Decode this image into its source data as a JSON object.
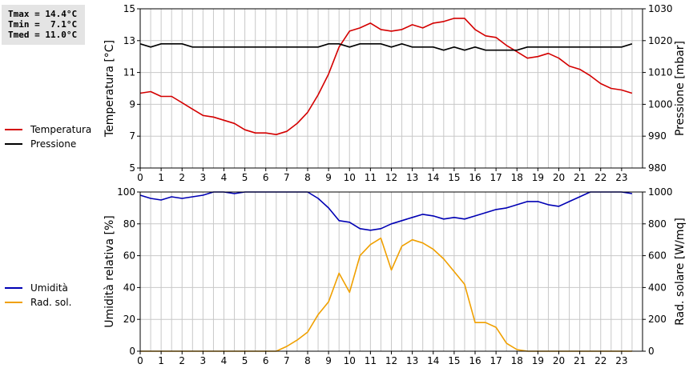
{
  "stats": {
    "tmax": "Tmax = 14.4°C",
    "tmin": "Tmin =  7.1°C",
    "tmed": "Tmed = 11.0°C"
  },
  "colors": {
    "temperature": "#d40000",
    "pressure": "#000000",
    "humidity": "#0000b4",
    "solar": "#f0a000",
    "grid": "#c8c8c8"
  },
  "chart_data": [
    {
      "type": "line",
      "x_ticks": [
        0,
        1,
        2,
        3,
        4,
        5,
        6,
        7,
        8,
        9,
        10,
        11,
        12,
        13,
        14,
        15,
        16,
        17,
        18,
        19,
        20,
        21,
        22,
        23
      ],
      "xlim": [
        0,
        24
      ],
      "ylabel_left": "Temperatura [°C]",
      "ylabel_right": "Pressione [mbar]",
      "ylim_left": [
        5,
        15
      ],
      "yticks_left": [
        5,
        7,
        9,
        11,
        13,
        15
      ],
      "ylim_right": [
        980,
        1030
      ],
      "yticks_right": [
        980,
        990,
        1000,
        1010,
        1020,
        1030
      ],
      "grid": true,
      "legend_position": "left",
      "series": [
        {
          "name": "Temperatura",
          "axis": "left",
          "color": "#d40000",
          "x": [
            0,
            0.5,
            1,
            1.5,
            2,
            2.5,
            3,
            3.5,
            4,
            4.5,
            5,
            5.5,
            6,
            6.5,
            7,
            7.5,
            8,
            8.5,
            9,
            9.5,
            10,
            10.5,
            11,
            11.5,
            12,
            12.5,
            13,
            13.5,
            14,
            14.5,
            15,
            15.5,
            16,
            16.5,
            17,
            17.5,
            18,
            18.5,
            19,
            19.5,
            20,
            20.5,
            21,
            21.5,
            22,
            22.5,
            23,
            23.5
          ],
          "values": [
            9.7,
            9.8,
            9.5,
            9.5,
            9.1,
            8.7,
            8.3,
            8.2,
            8.0,
            7.8,
            7.4,
            7.2,
            7.2,
            7.1,
            7.3,
            7.8,
            8.5,
            9.6,
            10.9,
            12.6,
            13.6,
            13.8,
            14.1,
            13.7,
            13.6,
            13.7,
            14.0,
            13.8,
            14.1,
            14.2,
            14.4,
            14.4,
            13.7,
            13.3,
            13.2,
            12.7,
            12.3,
            11.9,
            12.0,
            12.2,
            11.9,
            11.4,
            11.2,
            10.8,
            10.3,
            10.0,
            9.9,
            9.7
          ]
        },
        {
          "name": "Pressione",
          "axis": "right",
          "color": "#000000",
          "x": [
            0,
            0.5,
            1,
            1.5,
            2,
            2.5,
            3,
            3.5,
            4,
            4.5,
            5,
            5.5,
            6,
            6.5,
            7,
            7.5,
            8,
            8.5,
            9,
            9.5,
            10,
            10.5,
            11,
            11.5,
            12,
            12.5,
            13,
            13.5,
            14,
            14.5,
            15,
            15.5,
            16,
            16.5,
            17,
            17.5,
            18,
            18.5,
            19,
            19.5,
            20,
            20.5,
            21,
            21.5,
            22,
            22.5,
            23,
            23.5
          ],
          "values": [
            1019,
            1018,
            1019,
            1019,
            1019,
            1018,
            1018,
            1018,
            1018,
            1018,
            1018,
            1018,
            1018,
            1018,
            1018,
            1018,
            1018,
            1018,
            1019,
            1019,
            1018,
            1019,
            1019,
            1019,
            1018,
            1019,
            1018,
            1018,
            1018,
            1017,
            1018,
            1017,
            1018,
            1017,
            1017,
            1017,
            1017,
            1018,
            1018,
            1018,
            1018,
            1018,
            1018,
            1018,
            1018,
            1018,
            1018,
            1019
          ]
        }
      ]
    },
    {
      "type": "line",
      "x_ticks": [
        0,
        1,
        2,
        3,
        4,
        5,
        6,
        7,
        8,
        9,
        10,
        11,
        12,
        13,
        14,
        15,
        16,
        17,
        18,
        19,
        20,
        21,
        22,
        23
      ],
      "xlim": [
        0,
        24
      ],
      "ylabel_left": "Umidità relativa [%]",
      "ylabel_right": "Rad. solare [W/mq]",
      "ylim_left": [
        0,
        100
      ],
      "yticks_left": [
        0,
        20,
        40,
        60,
        80,
        100
      ],
      "ylim_right": [
        0,
        1000
      ],
      "yticks_right": [
        0,
        200,
        400,
        600,
        800,
        1000
      ],
      "grid": true,
      "legend_position": "left",
      "series": [
        {
          "name": "Umidità",
          "axis": "left",
          "color": "#0000b4",
          "x": [
            0,
            0.5,
            1,
            1.5,
            2,
            2.5,
            3,
            3.5,
            4,
            4.5,
            5,
            5.5,
            6,
            6.5,
            7,
            7.5,
            8,
            8.5,
            9,
            9.5,
            10,
            10.5,
            11,
            11.5,
            12,
            12.5,
            13,
            13.5,
            14,
            14.5,
            15,
            15.5,
            16,
            16.5,
            17,
            17.5,
            18,
            18.5,
            19,
            19.5,
            20,
            20.5,
            21,
            21.5,
            22,
            22.5,
            23,
            23.5
          ],
          "values": [
            98,
            96,
            95,
            97,
            96,
            97,
            98,
            100,
            100,
            99,
            100,
            100,
            100,
            100,
            100,
            100,
            100,
            96,
            90,
            82,
            81,
            77,
            76,
            77,
            80,
            82,
            84,
            86,
            85,
            83,
            84,
            83,
            85,
            87,
            89,
            90,
            92,
            94,
            94,
            92,
            91,
            94,
            97,
            100,
            100,
            100,
            100,
            99
          ]
        },
        {
          "name": "Rad. sol.",
          "axis": "right",
          "color": "#f0a000",
          "x": [
            0,
            0.5,
            1,
            1.5,
            2,
            2.5,
            3,
            3.5,
            4,
            4.5,
            5,
            5.5,
            6,
            6.5,
            7,
            7.5,
            8,
            8.5,
            9,
            9.5,
            10,
            10.5,
            11,
            11.5,
            12,
            12.5,
            13,
            13.5,
            14,
            14.5,
            15,
            15.5,
            16,
            16.5,
            17,
            17.5,
            18,
            18.5,
            19,
            19.5,
            20,
            20.5,
            21,
            21.5,
            22,
            22.5,
            23,
            23.5
          ],
          "values": [
            0,
            0,
            0,
            0,
            0,
            0,
            0,
            0,
            0,
            0,
            0,
            0,
            0,
            0,
            30,
            70,
            120,
            230,
            310,
            490,
            370,
            600,
            670,
            710,
            510,
            660,
            700,
            680,
            640,
            580,
            500,
            420,
            180,
            180,
            150,
            50,
            10,
            0,
            0,
            0,
            0,
            0,
            0,
            0,
            0,
            0,
            0,
            0
          ]
        }
      ]
    }
  ]
}
